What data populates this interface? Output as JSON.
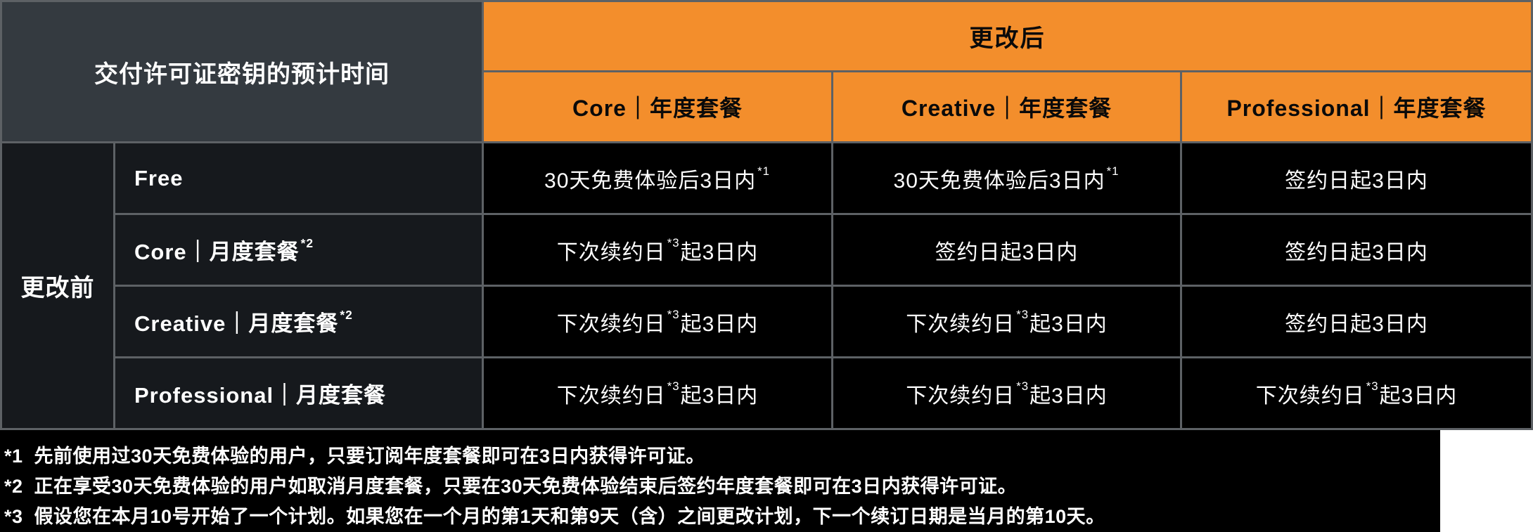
{
  "colors": {
    "accent_orange": "#f38e2c",
    "corner_gray": "#343a40",
    "row_header_dark": "#16191d",
    "data_cell_black": "#000000",
    "grid_line_gray": "#5d6165",
    "text_light": "#ffffff",
    "text_dark": "#0a0a0a"
  },
  "table": {
    "corner_title": "交付许可证密钥的预计时间",
    "column_group_header": "更改后",
    "row_group_header": "更改前",
    "columns": [
      {
        "label": "Core｜年度套餐"
      },
      {
        "label": "Creative｜年度套餐"
      },
      {
        "label": "Professional｜年度套餐"
      }
    ],
    "rows": [
      {
        "label": {
          "text": "Free",
          "sup": ""
        },
        "cells": [
          {
            "pre": "30天免费体验后3日内",
            "sup": "*1",
            "post": ""
          },
          {
            "pre": "30天免费体验后3日内",
            "sup": "*1",
            "post": ""
          },
          {
            "pre": "签约日起3日内",
            "sup": "",
            "post": ""
          }
        ]
      },
      {
        "label": {
          "text": "Core｜月度套餐",
          "sup": "*2"
        },
        "cells": [
          {
            "pre": "下次续约日",
            "sup": "*3",
            "post": "起3日内"
          },
          {
            "pre": "签约日起3日内",
            "sup": "",
            "post": ""
          },
          {
            "pre": "签约日起3日内",
            "sup": "",
            "post": ""
          }
        ]
      },
      {
        "label": {
          "text": "Creative｜月度套餐",
          "sup": "*2"
        },
        "cells": [
          {
            "pre": "下次续约日",
            "sup": "*3",
            "post": "起3日内"
          },
          {
            "pre": "下次续约日",
            "sup": "*3",
            "post": "起3日内"
          },
          {
            "pre": "签约日起3日内",
            "sup": "",
            "post": ""
          }
        ]
      },
      {
        "label": {
          "text": "Professional｜月度套餐",
          "sup": ""
        },
        "cells": [
          {
            "pre": "下次续约日",
            "sup": "*3",
            "post": "起3日内"
          },
          {
            "pre": "下次续约日",
            "sup": "*3",
            "post": "起3日内"
          },
          {
            "pre": "下次续约日",
            "sup": "*3",
            "post": "起3日内"
          }
        ]
      }
    ]
  },
  "footnotes": [
    {
      "marker": "*1",
      "text": "先前使用过30天免费体验的用户，只要订阅年度套餐即可在3日内获得许可证。"
    },
    {
      "marker": "*2",
      "text": "正在享受30天免费体验的用户如取消月度套餐，只要在30天免费体验结束后签约年度套餐即可在3日内获得许可证。"
    },
    {
      "marker": "*3",
      "text": "假设您在本月10号开始了一个计划。如果您在一个月的第1天和第9天（含）之间更改计划，下一个续订日期是当月的第10天。"
    }
  ]
}
